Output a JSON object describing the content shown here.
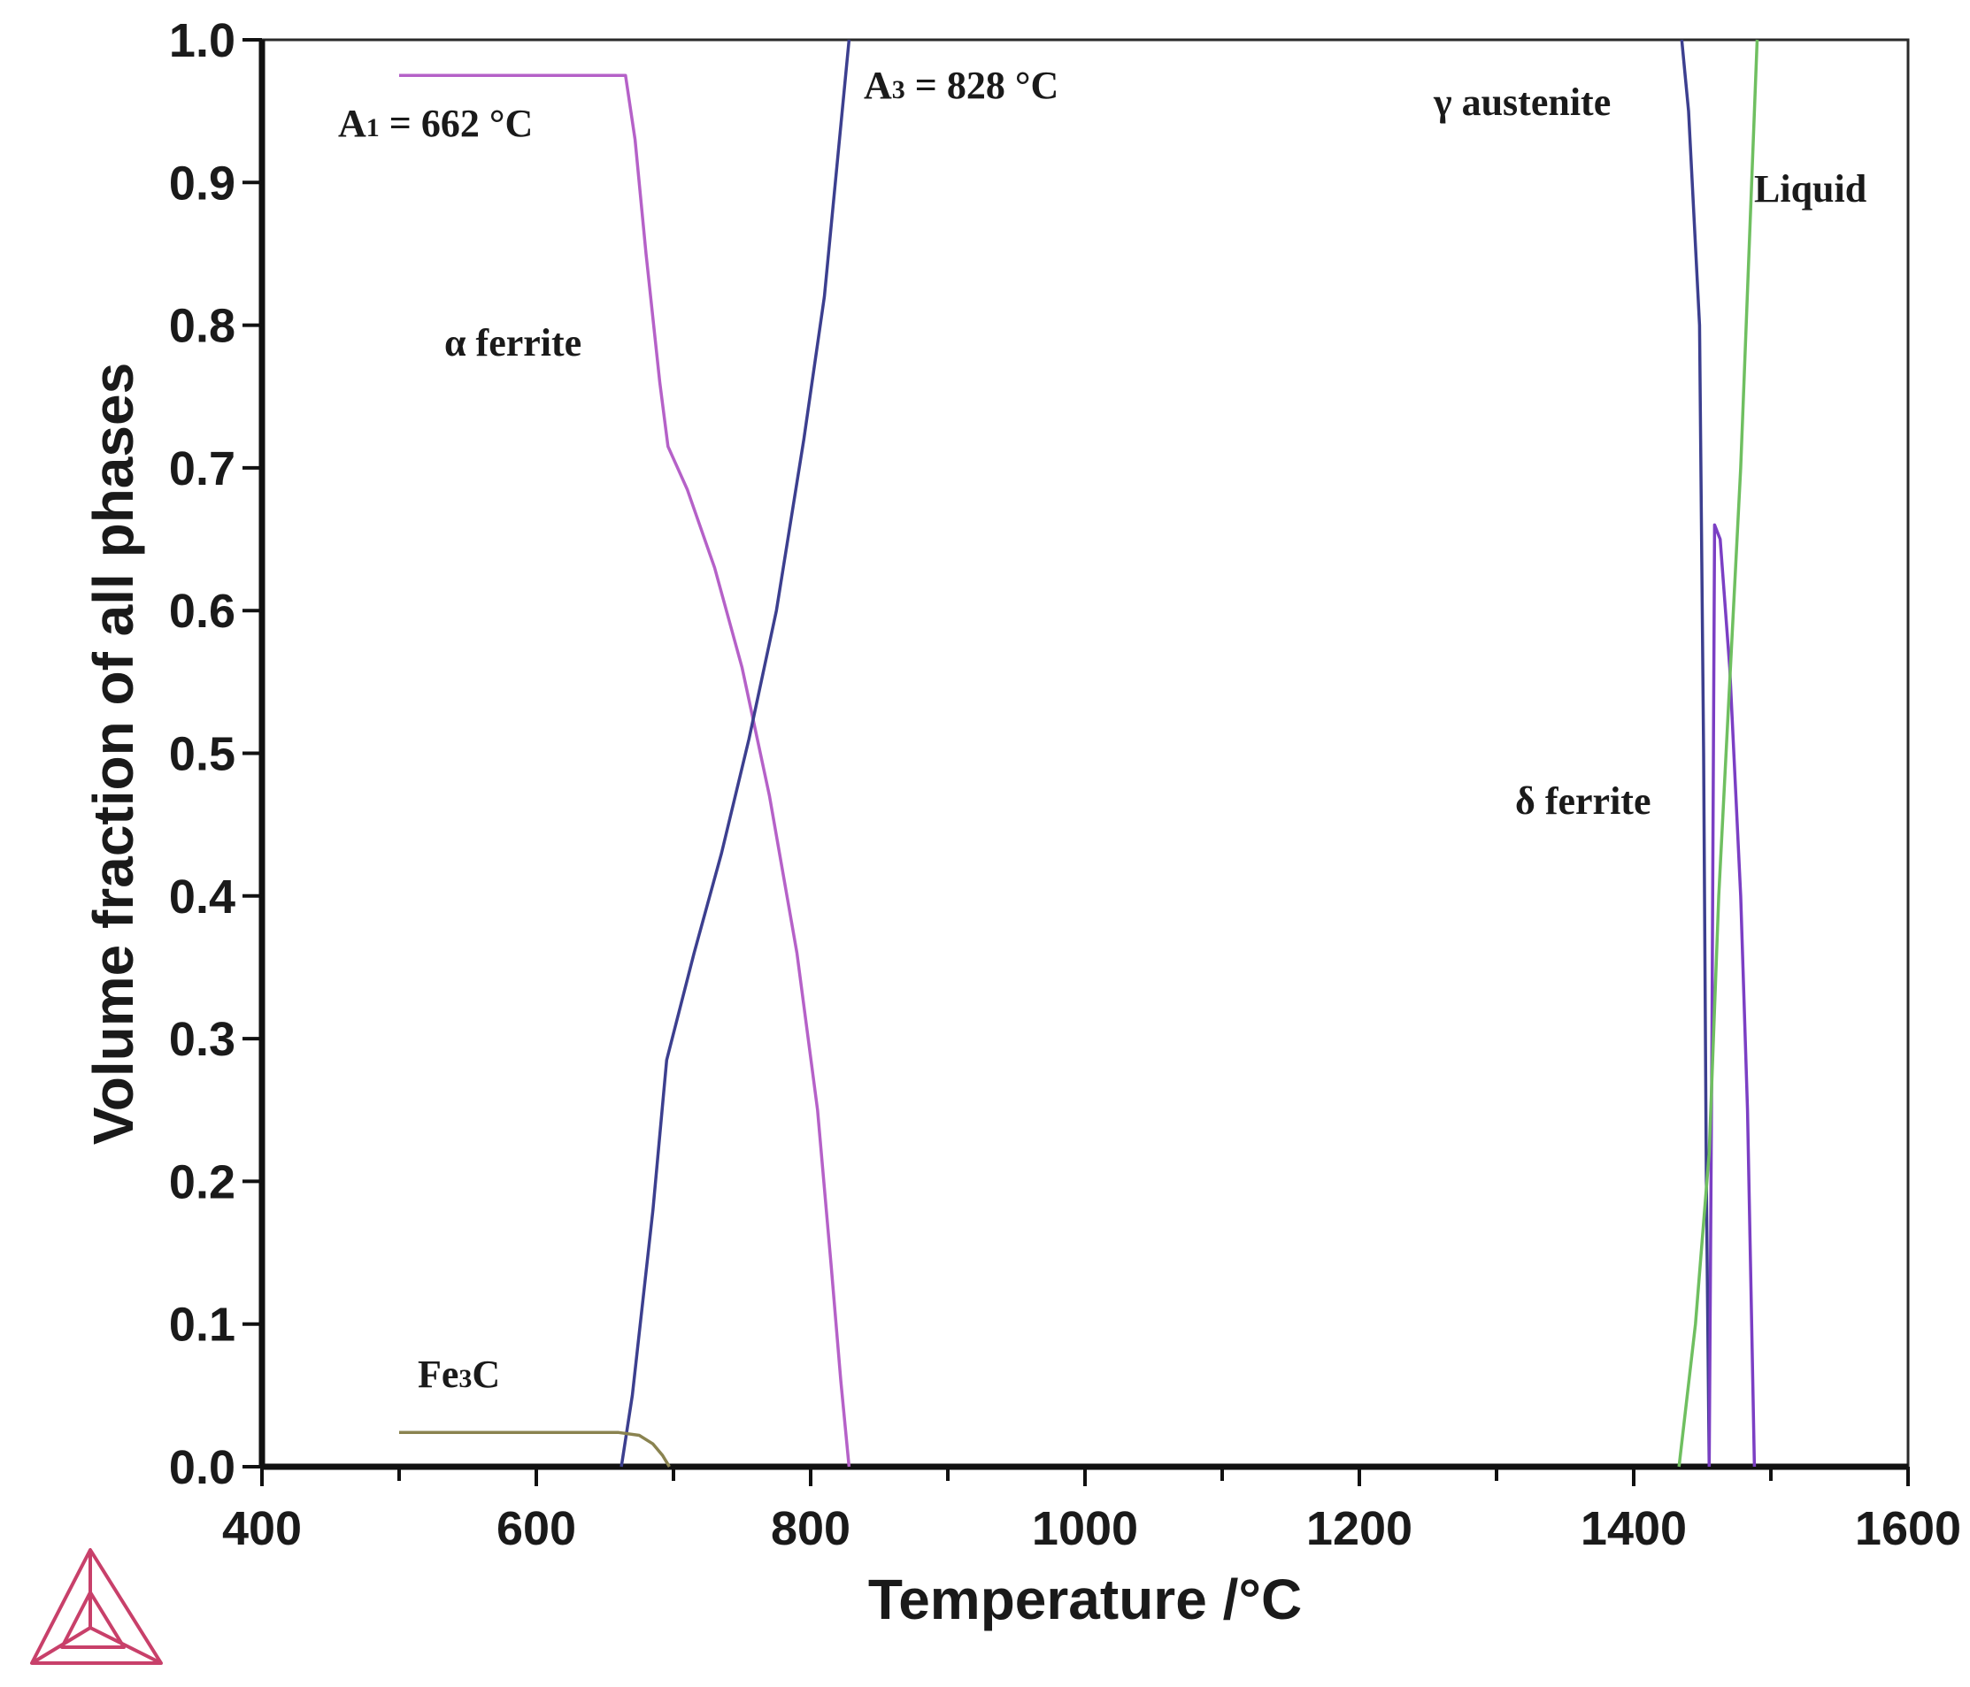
{
  "chart_data": {
    "type": "line",
    "xlabel": "Temperature /°C",
    "ylabel": "Volume fraction of all phases",
    "xlim": [
      400,
      1600
    ],
    "ylim": [
      0.0,
      1.0
    ],
    "xticks": [
      400,
      600,
      800,
      1000,
      1200,
      1400,
      1600
    ],
    "yticks": [
      0.0,
      0.1,
      0.2,
      0.3,
      0.4,
      0.5,
      0.6,
      0.7,
      0.8,
      0.9,
      1.0
    ],
    "xtick_labels": [
      "400",
      "600",
      "800",
      "1000",
      "1200",
      "1400",
      "1600"
    ],
    "ytick_labels": [
      "0.0",
      "0.1",
      "0.2",
      "0.3",
      "0.4",
      "0.5",
      "0.6",
      "0.7",
      "0.8",
      "0.9",
      "1.0"
    ],
    "grid": false,
    "series": [
      {
        "color": "#b561c8",
        "points": [
          [
            500,
            0.975
          ],
          [
            665,
            0.975
          ],
          [
            672,
            0.93
          ],
          [
            680,
            0.85
          ],
          [
            690,
            0.76
          ],
          [
            696,
            0.715
          ],
          [
            710,
            0.685
          ],
          [
            730,
            0.63
          ],
          [
            750,
            0.56
          ],
          [
            770,
            0.47
          ],
          [
            790,
            0.36
          ],
          [
            805,
            0.25
          ],
          [
            815,
            0.14
          ],
          [
            822,
            0.06
          ],
          [
            828,
            0.0
          ]
        ]
      },
      {
        "color": "#3c3f8f",
        "points": [
          [
            662,
            0.0
          ],
          [
            670,
            0.05
          ],
          [
            685,
            0.18
          ],
          [
            695,
            0.285
          ],
          [
            715,
            0.36
          ],
          [
            735,
            0.43
          ],
          [
            755,
            0.51
          ],
          [
            775,
            0.6
          ],
          [
            795,
            0.72
          ],
          [
            810,
            0.82
          ],
          [
            820,
            0.92
          ],
          [
            828,
            1.0
          ]
        ]
      },
      {
        "color": "#8a8350",
        "points": [
          [
            500,
            0.024
          ],
          [
            660,
            0.024
          ],
          [
            675,
            0.022
          ],
          [
            685,
            0.016
          ],
          [
            692,
            0.008
          ],
          [
            697,
            0.0
          ]
        ]
      },
      {
        "color": "#3c3f8f",
        "points": [
          [
            1435,
            1.0
          ],
          [
            1440,
            0.95
          ],
          [
            1448,
            0.8
          ],
          [
            1451,
            0.5
          ],
          [
            1453,
            0.2
          ],
          [
            1455,
            0.0
          ]
        ]
      },
      {
        "color": "#7b3fc4",
        "points": [
          [
            1455,
            0.0
          ],
          [
            1457,
            0.3
          ],
          [
            1459,
            0.66
          ],
          [
            1463,
            0.65
          ],
          [
            1470,
            0.56
          ],
          [
            1478,
            0.4
          ],
          [
            1483,
            0.25
          ],
          [
            1486,
            0.1
          ],
          [
            1488,
            0.0
          ]
        ]
      },
      {
        "color": "#6fbf60",
        "points": [
          [
            1433,
            0.0
          ],
          [
            1445,
            0.1
          ],
          [
            1455,
            0.22
          ],
          [
            1462,
            0.4
          ],
          [
            1470,
            0.55
          ],
          [
            1478,
            0.7
          ],
          [
            1484,
            0.85
          ],
          [
            1490,
            1.0
          ]
        ]
      }
    ],
    "annotations": {
      "a1_main": "A",
      "a1_sub": "1",
      "a1_rest": " = 662 °C",
      "a3_main": "A",
      "a3_sub": "3",
      "a3_rest": " = 828 °C",
      "alpha_ferrite": "α ferrite",
      "gamma_austenite": "γ austenite",
      "liquid": "Liquid",
      "delta_ferrite": "δ ferrite",
      "fe3c_main": "Fe",
      "fe3c_sub": "3",
      "fe3c_rest": "C"
    },
    "logo_color": "#c8406a"
  }
}
